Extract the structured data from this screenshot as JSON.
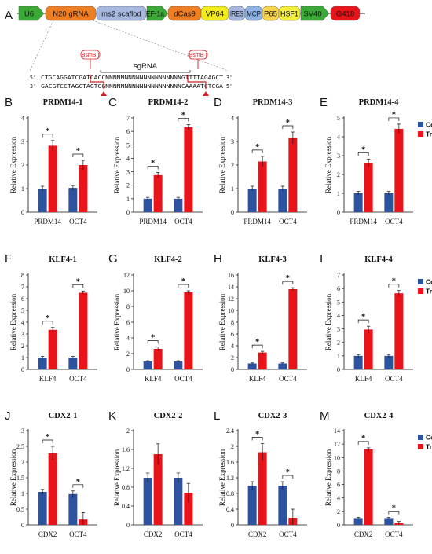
{
  "colors": {
    "control": "#2c52a0",
    "treated": "#e8141a",
    "bracket": "#111111"
  },
  "legend": {
    "control": "Control",
    "treated": "Treated"
  },
  "ylabel": "Relative Expression",
  "sig": "*",
  "construct": {
    "label": "A",
    "segments": [
      {
        "id": "u6",
        "text": "U6",
        "color": "#3aa935",
        "shape": "arrow"
      },
      {
        "id": "n20",
        "text": "N20 gRNA",
        "color": "#ef7d22",
        "shape": "rounded"
      },
      {
        "id": "ms2",
        "text": "ms2 scaflod",
        "color": "#a6b8df",
        "shape": "rounded"
      },
      {
        "id": "ef1a",
        "text": "EF-1a",
        "color": "#3aa935",
        "shape": "arrow"
      },
      {
        "id": "dcas9",
        "text": "dCas9",
        "color": "#ef7d22",
        "shape": "rounded"
      },
      {
        "id": "vp64",
        "text": "VP64",
        "color": "#f0ea1f",
        "shape": "rounded"
      },
      {
        "id": "ires",
        "text": "IRES",
        "color": "#a6b8df",
        "shape": "rounded"
      },
      {
        "id": "mcp",
        "text": "MCP",
        "color": "#8fb3e2",
        "shape": "rounded"
      },
      {
        "id": "p65",
        "text": "P65",
        "color": "#f7d44a",
        "shape": "rounded"
      },
      {
        "id": "hsf1",
        "text": "HSF1",
        "color": "#f3ef3c",
        "shape": "rounded"
      },
      {
        "id": "sv40",
        "text": "SV40",
        "color": "#3aa935",
        "shape": "arrow"
      },
      {
        "id": "g418",
        "text": "G418",
        "color": "#e8141a",
        "shape": "rounded"
      }
    ],
    "bsmb_left": "BsmB I",
    "bsmb_right": "BsmB I",
    "sgrna": "sgRNA",
    "seq_top": "CTGCAGGATCGATCACCNNNNNNNNNNNNNNNNNNNNGTTTTAGAGCT",
    "seq_bottom": "GACGTCCTAGCTAGTGGNNNNNNNNNNNNNNNNNNNNCAAAATCTCGA",
    "five_prime": "5'",
    "three_prime": "3'"
  },
  "chart_data": [
    {
      "id": "B",
      "label": "B",
      "title": "PRDM14-1",
      "type": "bar",
      "categories": [
        "PRDM14",
        "OCT4"
      ],
      "ylim": [
        0,
        4
      ],
      "yticks": [
        0,
        1,
        2,
        3,
        4
      ],
      "tick_decimals": 0,
      "series": [
        {
          "name": "Control",
          "values": [
            1.0,
            1.03
          ],
          "errors": [
            0.1,
            0.1
          ]
        },
        {
          "name": "Treated",
          "values": [
            2.82,
            2.0
          ],
          "errors": [
            0.22,
            0.2
          ]
        }
      ],
      "legend": false
    },
    {
      "id": "C",
      "label": "C",
      "title": "PRDM14-2",
      "type": "bar",
      "categories": [
        "PRDM14",
        "OCT4"
      ],
      "ylim": [
        0,
        7
      ],
      "yticks": [
        0,
        1,
        2,
        3,
        4,
        5,
        6,
        7
      ],
      "tick_decimals": 0,
      "series": [
        {
          "name": "Control",
          "values": [
            1.0,
            1.0
          ],
          "errors": [
            0.1,
            0.1
          ]
        },
        {
          "name": "Treated",
          "values": [
            2.75,
            6.3
          ],
          "errors": [
            0.2,
            0.2
          ]
        }
      ],
      "legend": false
    },
    {
      "id": "D",
      "label": "D",
      "title": "PRDM14-3",
      "type": "bar",
      "categories": [
        "PRDM14",
        "OCT4"
      ],
      "ylim": [
        0,
        4
      ],
      "yticks": [
        0,
        1,
        2,
        3,
        4
      ],
      "tick_decimals": 0,
      "series": [
        {
          "name": "Control",
          "values": [
            1.0,
            1.0
          ],
          "errors": [
            0.1,
            0.1
          ]
        },
        {
          "name": "Treated",
          "values": [
            2.15,
            3.15
          ],
          "errors": [
            0.22,
            0.25
          ]
        }
      ],
      "legend": false
    },
    {
      "id": "E",
      "label": "E",
      "title": "PRDM14-4",
      "type": "bar",
      "categories": [
        "PRDM14",
        "OCT4"
      ],
      "ylim": [
        0,
        5
      ],
      "yticks": [
        0,
        1,
        2,
        3,
        4,
        5
      ],
      "tick_decimals": 0,
      "series": [
        {
          "name": "Control",
          "values": [
            1.0,
            1.0
          ],
          "errors": [
            0.1,
            0.1
          ]
        },
        {
          "name": "Treated",
          "values": [
            2.62,
            4.42
          ],
          "errors": [
            0.2,
            0.25
          ]
        }
      ],
      "legend": true
    },
    {
      "id": "F",
      "label": "F",
      "title": "KLF4-1",
      "type": "bar",
      "categories": [
        "KLF4",
        "OCT4"
      ],
      "ylim": [
        0,
        8
      ],
      "yticks": [
        0,
        1,
        2,
        3,
        4,
        5,
        6,
        7,
        8
      ],
      "tick_decimals": 0,
      "series": [
        {
          "name": "Control",
          "values": [
            1.0,
            1.0
          ],
          "errors": [
            0.1,
            0.1
          ]
        },
        {
          "name": "Treated",
          "values": [
            3.35,
            6.5
          ],
          "errors": [
            0.2,
            0.15
          ]
        }
      ],
      "legend": false
    },
    {
      "id": "G",
      "label": "G",
      "title": "KLF4-2",
      "type": "bar",
      "categories": [
        "KLF4",
        "OCT4"
      ],
      "ylim": [
        0,
        12
      ],
      "yticks": [
        0,
        2,
        4,
        6,
        8,
        10,
        12
      ],
      "tick_decimals": 0,
      "series": [
        {
          "name": "Control",
          "values": [
            1.0,
            1.0
          ],
          "errors": [
            0.1,
            0.1
          ]
        },
        {
          "name": "Treated",
          "values": [
            2.6,
            9.8
          ],
          "errors": [
            0.25,
            0.2
          ]
        }
      ],
      "legend": false
    },
    {
      "id": "H",
      "label": "H",
      "title": "KLF4-3",
      "type": "bar",
      "categories": [
        "KLF4",
        "OCT4"
      ],
      "ylim": [
        0,
        16
      ],
      "yticks": [
        0,
        2,
        4,
        6,
        8,
        10,
        12,
        14,
        16
      ],
      "tick_decimals": 0,
      "series": [
        {
          "name": "Control",
          "values": [
            1.0,
            1.0
          ],
          "errors": [
            0.1,
            0.1
          ]
        },
        {
          "name": "Treated",
          "values": [
            2.85,
            13.6
          ],
          "errors": [
            0.2,
            0.25
          ]
        }
      ],
      "legend": false
    },
    {
      "id": "I",
      "label": "I",
      "title": "KLF4-4",
      "type": "bar",
      "categories": [
        "KLF4",
        "OCT4"
      ],
      "ylim": [
        0,
        7
      ],
      "yticks": [
        0,
        1,
        2,
        3,
        4,
        5,
        6,
        7
      ],
      "tick_decimals": 0,
      "series": [
        {
          "name": "Control",
          "values": [
            1.0,
            1.0
          ],
          "errors": [
            0.1,
            0.1
          ]
        },
        {
          "name": "Treated",
          "values": [
            2.95,
            5.65
          ],
          "errors": [
            0.25,
            0.2
          ]
        }
      ],
      "legend": true
    },
    {
      "id": "J",
      "label": "J",
      "title": "CDX2-1",
      "type": "bar",
      "categories": [
        "CDX2",
        "OCT4"
      ],
      "ylim": [
        0,
        3
      ],
      "yticks": [
        0,
        0.5,
        1,
        1.5,
        2,
        2.5,
        3
      ],
      "tick_decimals": 1,
      "series": [
        {
          "name": "Control",
          "values": [
            1.05,
            0.98
          ],
          "errors": [
            0.08,
            0.1
          ]
        },
        {
          "name": "Treated",
          "values": [
            2.28,
            0.17
          ],
          "errors": [
            0.22,
            0.22
          ]
        }
      ],
      "legend": false
    },
    {
      "id": "K",
      "label": "K",
      "title": "CDX2-2",
      "type": "bar",
      "categories": [
        "CDX2",
        "OCT4"
      ],
      "ylim": [
        0,
        2
      ],
      "yticks": [
        0,
        0.4,
        0.8,
        1.2,
        1.6,
        2
      ],
      "tick_decimals": 1,
      "series": [
        {
          "name": "Control",
          "values": [
            1.0,
            1.0
          ],
          "errors": [
            0.1,
            0.1
          ]
        },
        {
          "name": "Treated",
          "values": [
            1.5,
            0.68
          ],
          "errors": [
            0.22,
            0.2
          ]
        }
      ],
      "legend": false,
      "nosig": true
    },
    {
      "id": "L",
      "label": "L",
      "title": "CDX2-3",
      "type": "bar",
      "categories": [
        "CDX2",
        "OCT4"
      ],
      "ylim": [
        0,
        2.4
      ],
      "yticks": [
        0,
        0.4,
        0.8,
        1.2,
        1.6,
        2,
        2.4
      ],
      "tick_decimals": 1,
      "series": [
        {
          "name": "Control",
          "values": [
            1.0,
            1.0
          ],
          "errors": [
            0.1,
            0.1
          ]
        },
        {
          "name": "Treated",
          "values": [
            1.85,
            0.18
          ],
          "errors": [
            0.22,
            0.22
          ]
        }
      ],
      "legend": false
    },
    {
      "id": "M",
      "label": "M",
      "title": "CDX2-4",
      "type": "bar",
      "categories": [
        "CDX2",
        "OCT4"
      ],
      "ylim": [
        0,
        14
      ],
      "yticks": [
        0,
        2,
        4,
        6,
        8,
        10,
        12,
        14
      ],
      "tick_decimals": 0,
      "series": [
        {
          "name": "Control",
          "values": [
            1.0,
            1.0
          ],
          "errors": [
            0.1,
            0.1
          ]
        },
        {
          "name": "Treated",
          "values": [
            11.2,
            0.3
          ],
          "errors": [
            0.25,
            0.2
          ]
        }
      ],
      "legend": true
    }
  ]
}
